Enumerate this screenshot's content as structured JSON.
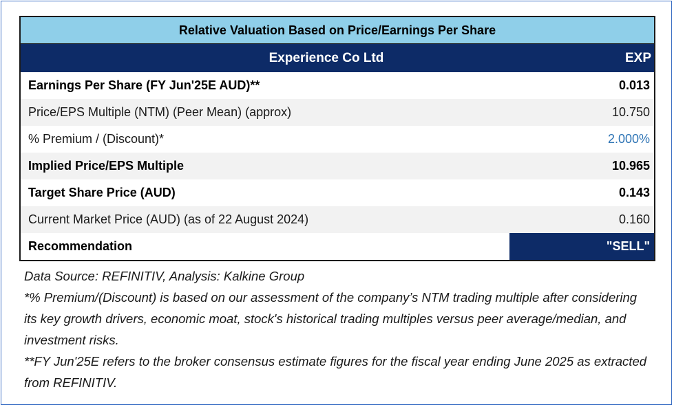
{
  "table": {
    "title": "Relative Valuation Based on Price/Earnings Per Share",
    "company": "Experience Co Ltd",
    "ticker": "EXP",
    "rows": [
      {
        "label": "Earnings Per Share (FY Jun'25E AUD)**",
        "value": "0.013"
      },
      {
        "label": "Price/EPS Multiple (NTM) (Peer Mean) (approx)",
        "value": "10.750"
      },
      {
        "label": "% Premium / (Discount)*",
        "value": "2.000%"
      },
      {
        "label": "Implied Price/EPS Multiple",
        "value": "10.965"
      },
      {
        "label": "Target Share Price (AUD)",
        "value": "0.143"
      },
      {
        "label": "Current Market Price (AUD) (as of 22 August 2024)",
        "value": "0.160"
      },
      {
        "label": "Recommendation",
        "value": "\"SELL\""
      }
    ]
  },
  "notes": {
    "source": "Data Source: REFINITIV, Analysis: Kalkine Group",
    "premium_note": "*% Premium/(Discount) is based on our assessment of the company’s NTM trading multiple after considering its key growth drivers, economic moat, stock's historical trading multiples versus peer average/median, and investment risks.",
    "fy_note": "**FY Jun'25E refers to the broker consensus estimate figures for the fiscal year ending June 2025 as extracted from REFINITIV."
  },
  "colors": {
    "title_bg": "#8fcfe9",
    "header_bg": "#0d2b67",
    "accent_blue_text": "#2e74b5",
    "shade": "#f2f2f2"
  }
}
